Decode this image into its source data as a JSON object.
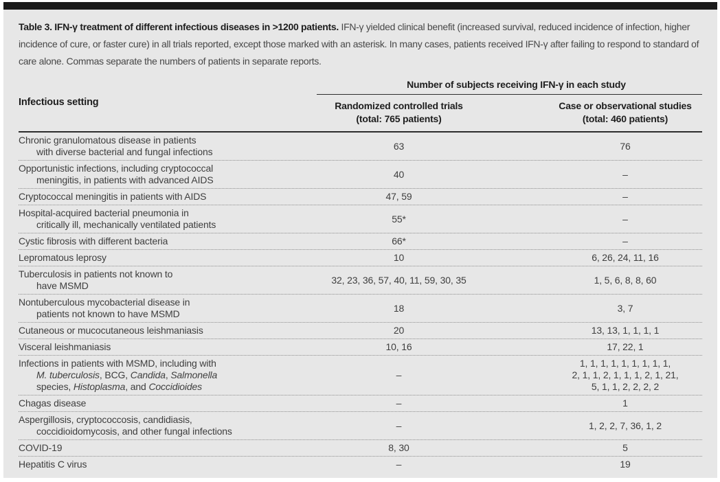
{
  "caption": {
    "bold": "Table 3. IFN-γ treatment of different infectious diseases in >1200 patients.",
    "rest": " IFN-γ yielded clinical benefit (increased survival, reduced incidence of infection, higher incidence of cure, or faster cure) in all trials reported, except those marked with an asterisk. In many cases, patients received IFN-γ after failing to respond to standard of care alone. Commas separate the numbers of patients in separate reports."
  },
  "table": {
    "col1_header": "Infectious setting",
    "span_header": "Number of subjects receiving IFN-γ in each study",
    "col2_header_line1": "Randomized controlled trials",
    "col2_header_line2": "(total: 765 patients)",
    "col3_header_line1": "Case or observational studies",
    "col3_header_line2": "(total: 460 patients)",
    "empty_marker": "–",
    "rows": [
      {
        "setting": [
          [
            [
              "Chronic granulomatous disease in patients",
              false
            ]
          ],
          [
            [
              "with diverse bacterial and fungal infections",
              false
            ]
          ]
        ],
        "rct": [
          "63"
        ],
        "obs": [
          "76"
        ]
      },
      {
        "setting": [
          [
            [
              "Opportunistic infections, including cryptococcal",
              false
            ]
          ],
          [
            [
              "meningitis, in patients with advanced AIDS",
              false
            ]
          ]
        ],
        "rct": [
          "40"
        ],
        "obs": [
          "–"
        ]
      },
      {
        "setting": [
          [
            [
              "Cryptococcal meningitis in patients with AIDS",
              false
            ]
          ]
        ],
        "rct": [
          "47, 59"
        ],
        "obs": [
          "–"
        ]
      },
      {
        "setting": [
          [
            [
              "Hospital-acquired bacterial pneumonia in",
              false
            ]
          ],
          [
            [
              "critically ill, mechanically ventilated patients",
              false
            ]
          ]
        ],
        "rct": [
          "55*"
        ],
        "obs": [
          "–"
        ]
      },
      {
        "setting": [
          [
            [
              "Cystic fibrosis with different bacteria",
              false
            ]
          ]
        ],
        "rct": [
          "66*"
        ],
        "obs": [
          "–"
        ]
      },
      {
        "setting": [
          [
            [
              "Lepromatous leprosy",
              false
            ]
          ]
        ],
        "rct": [
          "10"
        ],
        "obs": [
          "6, 26, 24, 11, 16"
        ]
      },
      {
        "setting": [
          [
            [
              "Tuberculosis in patients not known to",
              false
            ]
          ],
          [
            [
              "have MSMD",
              false
            ]
          ]
        ],
        "rct": [
          "32, 23, 36, 57, 40, 11, 59, 30, 35"
        ],
        "obs": [
          "1, 5, 6, 8, 8, 60"
        ]
      },
      {
        "setting": [
          [
            [
              "Nontuberculous mycobacterial disease in",
              false
            ]
          ],
          [
            [
              "patients not known to have MSMD",
              false
            ]
          ]
        ],
        "rct": [
          "18"
        ],
        "obs": [
          "3, 7"
        ]
      },
      {
        "setting": [
          [
            [
              "Cutaneous or mucocutaneous leishmaniasis",
              false
            ]
          ]
        ],
        "rct": [
          "20"
        ],
        "obs": [
          "13, 13, 1, 1, 1, 1"
        ]
      },
      {
        "setting": [
          [
            [
              "Visceral leishmaniasis",
              false
            ]
          ]
        ],
        "rct": [
          "10, 16"
        ],
        "obs": [
          "17, 22, 1"
        ]
      },
      {
        "setting": [
          [
            [
              "Infections in patients with MSMD, including with",
              false
            ]
          ],
          [
            [
              "M. tuberculosis",
              true
            ],
            [
              ", BCG, ",
              false
            ],
            [
              "Candida",
              true
            ],
            [
              ", ",
              false
            ],
            [
              "Salmonella",
              true
            ]
          ],
          [
            [
              "species, ",
              false
            ],
            [
              "Histoplasma",
              true
            ],
            [
              ", and ",
              false
            ],
            [
              "Coccidioides",
              true
            ]
          ]
        ],
        "rct": [
          "–"
        ],
        "obs": [
          "1, 1, 1, 1, 1, 1, 1, 1, 1,",
          "2, 1, 1, 2, 1, 1, 1, 2, 1, 21,",
          "5, 1, 1, 2, 2, 2, 2"
        ]
      },
      {
        "setting": [
          [
            [
              "Chagas disease",
              false
            ]
          ]
        ],
        "rct": [
          "–"
        ],
        "obs": [
          "1"
        ]
      },
      {
        "setting": [
          [
            [
              "Aspergillosis, cryptococcosis, candidiasis,",
              false
            ]
          ],
          [
            [
              "coccidioidomycosis, and other fungal infections",
              false
            ]
          ]
        ],
        "rct": [
          "–"
        ],
        "obs": [
          "1, 2, 2, 7, 36, 1, 2"
        ]
      },
      {
        "setting": [
          [
            [
              "COVID-19",
              false
            ]
          ]
        ],
        "rct": [
          "8, 30"
        ],
        "obs": [
          "5"
        ]
      },
      {
        "setting": [
          [
            [
              "Hepatitis C virus",
              false
            ]
          ]
        ],
        "rct": [
          "–"
        ],
        "obs": [
          "19"
        ]
      }
    ]
  },
  "colors": {
    "top_bar": "#1b1b1b",
    "panel_background": "#e7e7e7",
    "body_text": "#3e3e3e",
    "heading_text": "#1d1d1d",
    "solid_rule": "#2c2c2c",
    "dotted_rule": "#8d8d8d"
  }
}
